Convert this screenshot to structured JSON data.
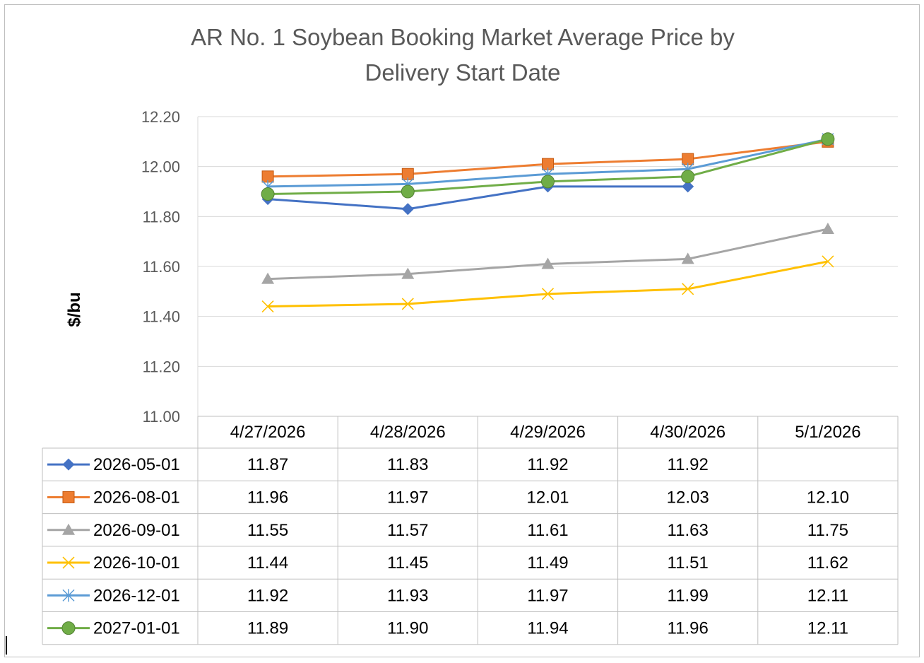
{
  "chart_data": {
    "type": "line",
    "title": "AR No. 1 Soybean Booking Market Average Price by Delivery Start Date",
    "title_lines": [
      "AR No. 1 Soybean Booking Market Average Price by",
      "Delivery Start Date"
    ],
    "ylabel": "$/bu",
    "xlabel": "",
    "ylim": [
      11.0,
      12.2
    ],
    "yticks": [
      "11.00",
      "11.20",
      "11.40",
      "11.60",
      "11.80",
      "12.00",
      "12.20"
    ],
    "grid": true,
    "data_table": true,
    "categories": [
      "4/27/2026",
      "4/28/2026",
      "4/29/2026",
      "4/30/2026",
      "5/1/2026"
    ],
    "series": [
      {
        "name": "2026-05-01",
        "color": "#4472c4",
        "marker": "diamond",
        "values": [
          11.87,
          11.83,
          11.92,
          11.92,
          null
        ],
        "labels": [
          "11.87",
          "11.83",
          "11.92",
          "11.92",
          ""
        ]
      },
      {
        "name": "2026-08-01",
        "color": "#ed7d31",
        "marker": "square",
        "values": [
          11.96,
          11.97,
          12.01,
          12.03,
          12.1
        ],
        "labels": [
          "11.96",
          "11.97",
          "12.01",
          "12.03",
          "12.10"
        ]
      },
      {
        "name": "2026-09-01",
        "color": "#a5a5a5",
        "marker": "triangle",
        "values": [
          11.55,
          11.57,
          11.61,
          11.63,
          11.75
        ],
        "labels": [
          "11.55",
          "11.57",
          "11.61",
          "11.63",
          "11.75"
        ]
      },
      {
        "name": "2026-10-01",
        "color": "#ffc000",
        "marker": "x",
        "values": [
          11.44,
          11.45,
          11.49,
          11.51,
          11.62
        ],
        "labels": [
          "11.44",
          "11.45",
          "11.49",
          "11.51",
          "11.62"
        ]
      },
      {
        "name": "2026-12-01",
        "color": "#5b9bd5",
        "marker": "star",
        "values": [
          11.92,
          11.93,
          11.97,
          11.99,
          12.11
        ],
        "labels": [
          "11.92",
          "11.93",
          "11.97",
          "11.99",
          "12.11"
        ]
      },
      {
        "name": "2027-01-01",
        "color": "#70ad47",
        "marker": "circle",
        "values": [
          11.89,
          11.9,
          11.94,
          11.96,
          12.11
        ],
        "labels": [
          "11.89",
          "11.90",
          "11.94",
          "11.96",
          "12.11"
        ]
      }
    ]
  }
}
